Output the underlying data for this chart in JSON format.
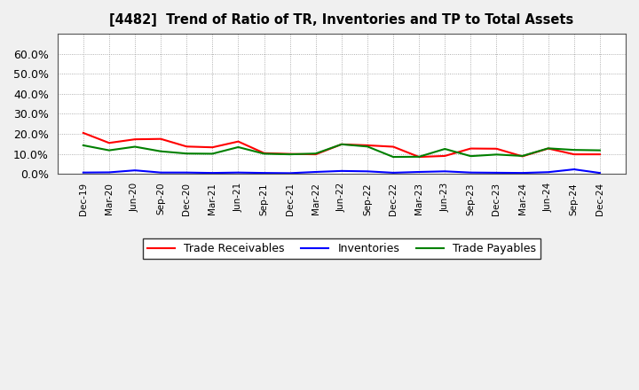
{
  "title": "[4482]  Trend of Ratio of TR, Inventories and TP to Total Assets",
  "x_labels": [
    "Dec-19",
    "Mar-20",
    "Jun-20",
    "Sep-20",
    "Dec-20",
    "Mar-21",
    "Jun-21",
    "Sep-21",
    "Dec-21",
    "Mar-22",
    "Jun-22",
    "Sep-22",
    "Dec-22",
    "Mar-23",
    "Jun-23",
    "Sep-23",
    "Dec-23",
    "Mar-24",
    "Jun-24",
    "Sep-24",
    "Dec-24"
  ],
  "trade_receivables": [
    0.205,
    0.155,
    0.173,
    0.175,
    0.137,
    0.133,
    0.162,
    0.104,
    0.1,
    0.098,
    0.148,
    0.143,
    0.136,
    0.085,
    0.09,
    0.127,
    0.126,
    0.088,
    0.127,
    0.098,
    0.098
  ],
  "inventories": [
    0.007,
    0.008,
    0.018,
    0.007,
    0.007,
    0.005,
    0.007,
    0.005,
    0.004,
    0.01,
    0.015,
    0.013,
    0.006,
    0.01,
    0.013,
    0.007,
    0.006,
    0.005,
    0.009,
    0.023,
    0.005
  ],
  "trade_payables": [
    0.143,
    0.118,
    0.136,
    0.113,
    0.102,
    0.101,
    0.134,
    0.101,
    0.098,
    0.102,
    0.148,
    0.137,
    0.085,
    0.086,
    0.125,
    0.089,
    0.097,
    0.09,
    0.128,
    0.12,
    0.118
  ],
  "tr_color": "#ff0000",
  "inv_color": "#0000ff",
  "tp_color": "#008000",
  "ylim": [
    0.0,
    0.7
  ],
  "yticks": [
    0.0,
    0.1,
    0.2,
    0.3,
    0.4,
    0.5,
    0.6
  ],
  "bg_color": "#f0f0f0",
  "plot_bg_color": "#ffffff",
  "grid_color": "#999999",
  "legend_labels": [
    "Trade Receivables",
    "Inventories",
    "Trade Payables"
  ]
}
